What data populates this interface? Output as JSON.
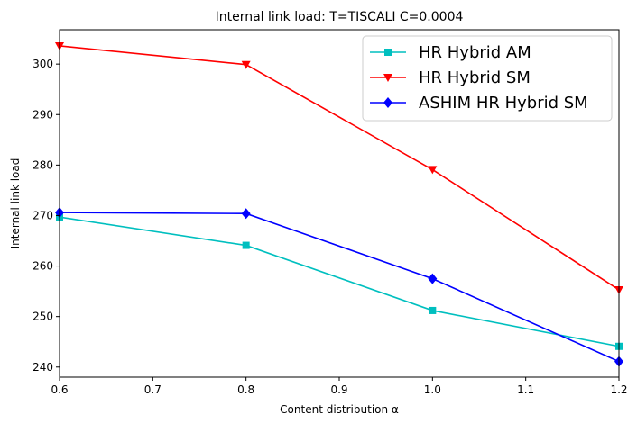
{
  "chart_data": {
    "type": "line",
    "title": "Internal link load: T=TISCALI C=0.0004",
    "xlabel": "Content distribution α",
    "ylabel": "Internal link load",
    "x": [
      0.6,
      0.8,
      1.0,
      1.2
    ],
    "xlim": [
      0.6,
      1.2
    ],
    "ylim": [
      238,
      306.8
    ],
    "xticks": [
      "0.6",
      "0.7",
      "0.8",
      "0.9",
      "1.0",
      "1.1",
      "1.2"
    ],
    "yticks": [
      "240",
      "250",
      "260",
      "270",
      "280",
      "290",
      "300"
    ],
    "grid": false,
    "legend_position": "top-right",
    "series": [
      {
        "name": "HR Hybrid AM",
        "color": "#00bfbf",
        "marker": "square",
        "values": [
          269.7,
          264.1,
          251.2,
          244.1
        ]
      },
      {
        "name": "HR Hybrid SM",
        "color": "#ff0000",
        "marker": "triangle-down",
        "values": [
          303.6,
          299.9,
          279.1,
          255.3
        ]
      },
      {
        "name": "ASHIM HR Hybrid SM",
        "color": "#0000ff",
        "marker": "diamond",
        "values": [
          270.6,
          270.4,
          257.5,
          241.1
        ]
      }
    ]
  }
}
